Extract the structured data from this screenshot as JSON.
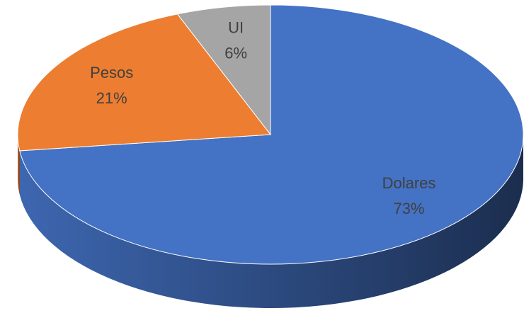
{
  "chart_data": {
    "type": "pie",
    "three_d": true,
    "categories": [
      "Dolares",
      "Pesos",
      "UI"
    ],
    "values": [
      73,
      21,
      6
    ],
    "value_labels": [
      "73%",
      "21%",
      "6%"
    ],
    "colors": [
      "#4472c4",
      "#ed7d31",
      "#a5a5a5"
    ]
  }
}
